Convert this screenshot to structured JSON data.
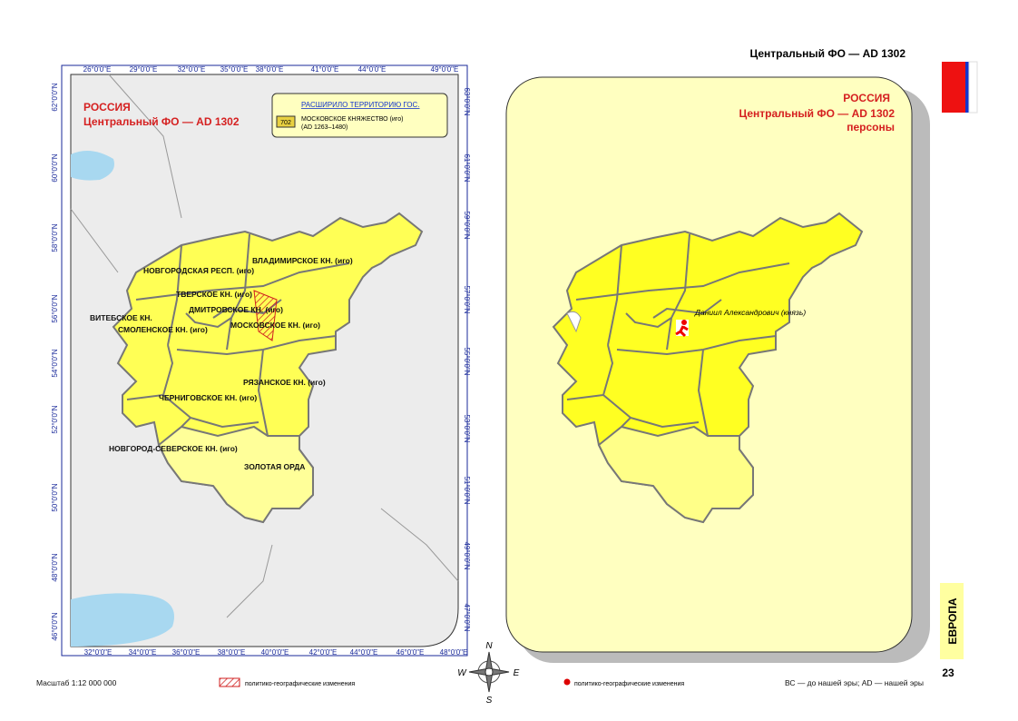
{
  "header": {
    "title": "Центральный ФО — AD 1302"
  },
  "left_map": {
    "title": [
      "РОССИЯ",
      "Центральный ФО — AD 1302"
    ],
    "legend": {
      "heading": "РАСШИРИЛО ТЕРРИТОРИЮ ГОС.",
      "code": "702",
      "item": "МОСКОВСКОЕ КНЯЖЕСТВО (иго)",
      "period": "(AD 1263–1480)"
    },
    "top_ticks": [
      "26°0'0\"E",
      "29°0'0\"E",
      "32°0'0\"E",
      "35°0'0\"E",
      "38°0'0\"E",
      "41°0'0\"E",
      "44°0'0\"E",
      "49°0'0\"E"
    ],
    "bottom_ticks": [
      "32°0'0\"E",
      "34°0'0\"E",
      "36°0'0\"E",
      "38°0'0\"E",
      "40°0'0\"E",
      "42°0'0\"E",
      "44°0'0\"E",
      "46°0'0\"E",
      "48°0'0\"E"
    ],
    "left_ticks": [
      "62°0'0\"N",
      "60°0'0\"N",
      "58°0'0\"N",
      "56°0'0\"N",
      "54°0'0\"N",
      "52°0'0\"N",
      "50°0'0\"N",
      "48°0'0\"N",
      "46°0'0\"N"
    ],
    "right_ticks": [
      "63°0'0\"N",
      "61°0'0\"N",
      "59°0'0\"N",
      "57°0'0\"N",
      "55°0'0\"N",
      "53°0'0\"N",
      "51°0'0\"N",
      "49°0'0\"N",
      "47°0'0\"N"
    ],
    "regions": [
      "ВЛАДИМИРСКОЕ КН. (иго)",
      "НОВГОРОДСКАЯ РЕСП. (иго)",
      "ТВЕРСКОЕ КН. (иго)",
      "ДМИТРОВСКОЕ КН. (иго)",
      "ВИТЕБСКОЕ КН.",
      "СМОЛЕНСКОЕ КН. (иго)",
      "МОСКОВСКОЕ КН. (иго)",
      "РЯЗАНСКОЕ КН. (иго)",
      "ЧЕРНИГОВСКОЕ КН. (иго)",
      "НОВГОРОД-СЕВЕРСКОЕ КН. (иго)",
      "ЗОЛОТАЯ ОРДА"
    ]
  },
  "right_map": {
    "title": [
      "РОССИЯ",
      "Центральный ФО — AD 1302",
      "персоны"
    ],
    "person": "Даниил Александрович (князь)"
  },
  "compass": [
    "N",
    "E",
    "S",
    "W"
  ],
  "footer": {
    "scale": "Масштаб 1:12 000 000",
    "left_legend": "политико-географические изменения",
    "right_legend": "политико-географические изменения",
    "era": "ВС — до нашей эры; AD — нашей эры",
    "section": "ЕВРОПА",
    "page": "23"
  }
}
